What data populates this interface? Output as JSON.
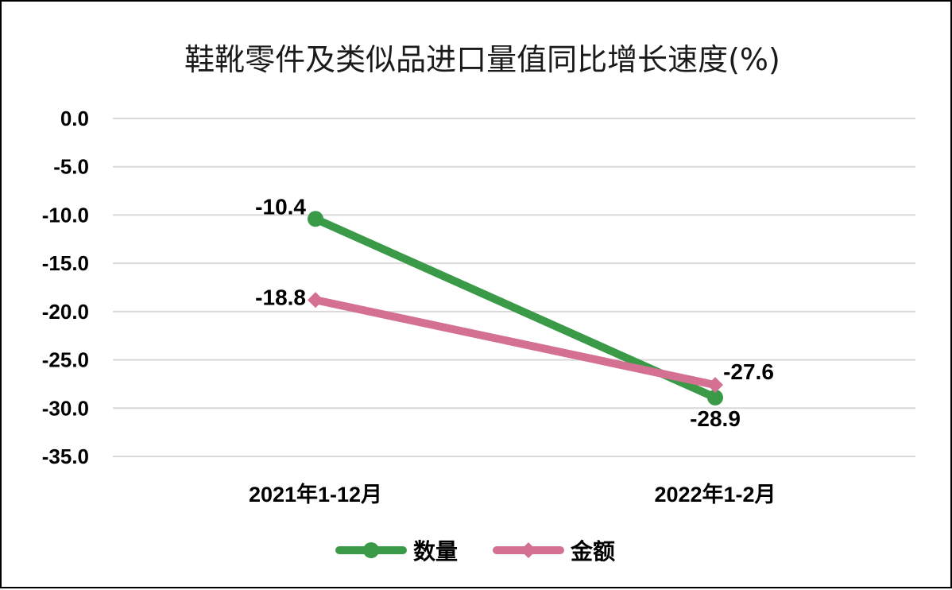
{
  "chart_data": {
    "type": "line",
    "title": "鞋靴零件及类似品进口量值同比增长速度(%)",
    "categories": [
      "2021年1-12月",
      "2022年1-2月"
    ],
    "ylim": [
      -35,
      0
    ],
    "yticks": [
      0,
      -5,
      -10,
      -15,
      -20,
      -25,
      -30,
      -35
    ],
    "ytick_labels": [
      "0.0",
      "-5.0",
      "-10.0",
      "-15.0",
      "-20.0",
      "-25.0",
      "-30.0",
      "-35.0"
    ],
    "grid": true,
    "legend_position": "bottom",
    "series": [
      {
        "name": "数量",
        "values": [
          -10.4,
          -28.9
        ],
        "labels": [
          "-10.4",
          "-28.9"
        ],
        "color": "#3a9a48",
        "marker": "circle"
      },
      {
        "name": "金额",
        "values": [
          -18.8,
          -27.6
        ],
        "labels": [
          "-18.8",
          "-27.6"
        ],
        "color": "#d47092",
        "marker": "diamond"
      }
    ]
  }
}
